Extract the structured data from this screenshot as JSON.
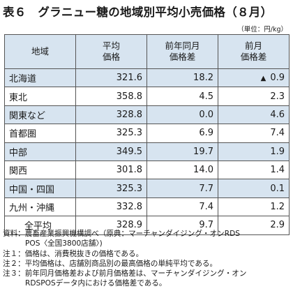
{
  "title": "表６　グラニュー糖の地域別平均小売価格（８月）",
  "unit": "（単位：円/kg）",
  "table": {
    "headers": [
      "地域",
      "平均\n価格",
      "前年同月\n価格差",
      "前月\n価格差"
    ],
    "rows": [
      {
        "region": "北海道",
        "avg": "321.6",
        "yoy": "18.2",
        "mom": "0.9",
        "mom_sign": "▲"
      },
      {
        "region": "東北",
        "avg": "358.8",
        "yoy": "4.5",
        "mom": "2.3",
        "mom_sign": ""
      },
      {
        "region": "関東など",
        "avg": "328.8",
        "yoy": "0.0",
        "mom": "4.6",
        "mom_sign": ""
      },
      {
        "region": "首都圏",
        "avg": "325.3",
        "yoy": "6.9",
        "mom": "7.4",
        "mom_sign": ""
      },
      {
        "region": "中部",
        "avg": "349.5",
        "yoy": "19.7",
        "mom": "1.9",
        "mom_sign": ""
      },
      {
        "region": "関西",
        "avg": "301.8",
        "yoy": "14.0",
        "mom": "1.4",
        "mom_sign": ""
      },
      {
        "region": "中国・四国",
        "avg": "325.3",
        "yoy": "7.7",
        "mom": "0.1",
        "mom_sign": ""
      },
      {
        "region": "九州・沖縄",
        "avg": "332.8",
        "yoy": "7.4",
        "mom": "1.2",
        "mom_sign": ""
      },
      {
        "region": "全平均",
        "avg": "328.9",
        "yoy": "9.7",
        "mom": "2.9",
        "mom_sign": ""
      }
    ]
  },
  "notes": {
    "source_label": "資料：",
    "source_line1": "農畜産業振興機構調べ（原典：マーチャンダイジング・オンRDS",
    "source_line2": "POS〈全国3800店舗〉)",
    "note1": "注１：価格は、消費税抜きの価格である。",
    "note2": "注２：平均価格は、店舗別商品別の最高価格の単純平均である。",
    "note3_line1": "注３：前年同月価格差および前月価格差は、マーチャンダイジング・オン",
    "note3_line2": "RDSPOSデータ内における価格差である。"
  }
}
